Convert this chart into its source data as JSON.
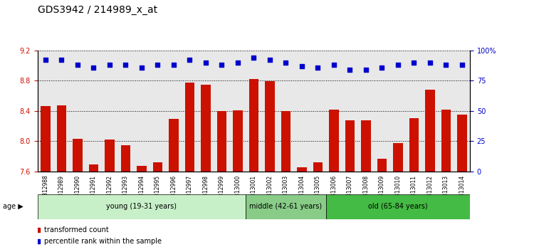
{
  "title": "GDS3942 / 214989_x_at",
  "samples": [
    "GSM812988",
    "GSM812989",
    "GSM812990",
    "GSM812991",
    "GSM812992",
    "GSM812993",
    "GSM812994",
    "GSM812995",
    "GSM812996",
    "GSM812997",
    "GSM812998",
    "GSM812999",
    "GSM813000",
    "GSM813001",
    "GSM813002",
    "GSM813003",
    "GSM813004",
    "GSM813005",
    "GSM813006",
    "GSM813007",
    "GSM813008",
    "GSM813009",
    "GSM813010",
    "GSM813011",
    "GSM813012",
    "GSM813013",
    "GSM813014"
  ],
  "bar_values": [
    8.46,
    8.47,
    8.03,
    7.69,
    8.02,
    7.95,
    7.67,
    7.72,
    8.29,
    8.77,
    8.75,
    8.4,
    8.41,
    8.82,
    8.79,
    8.4,
    7.65,
    7.72,
    8.42,
    8.28,
    8.28,
    7.77,
    7.97,
    8.3,
    8.68,
    8.42,
    8.35
  ],
  "percentile_values": [
    92,
    92,
    88,
    86,
    88,
    88,
    86,
    88,
    88,
    92,
    90,
    88,
    90,
    94,
    92,
    90,
    87,
    86,
    88,
    84,
    84,
    86,
    88,
    90,
    90,
    88,
    88
  ],
  "ylim_left": [
    7.6,
    9.2
  ],
  "ylim_right": [
    0,
    100
  ],
  "yticks_left": [
    7.6,
    8.0,
    8.4,
    8.8,
    9.2
  ],
  "yticks_right": [
    0,
    25,
    50,
    75,
    100
  ],
  "ytick_labels_right": [
    "0",
    "25",
    "50",
    "75",
    "100%"
  ],
  "bar_color": "#cc1100",
  "dot_color": "#0000cc",
  "grid_color": "#000000",
  "age_groups": [
    {
      "label": "young (19-31 years)",
      "start": 0,
      "end": 13,
      "color": "#ccffcc"
    },
    {
      "label": "middle (42-61 years)",
      "start": 13,
      "end": 18,
      "color": "#99dd99"
    },
    {
      "label": "old (65-84 years)",
      "start": 18,
      "end": 27,
      "color": "#55cc55"
    }
  ],
  "legend_items": [
    {
      "label": "transformed count",
      "color": "#cc1100",
      "marker": "s"
    },
    {
      "label": "percentile rank within the sample",
      "color": "#0000cc",
      "marker": "s"
    }
  ],
  "xlabel": "age",
  "background_color": "#f0f0f0",
  "title_fontsize": 10,
  "tick_fontsize": 7
}
